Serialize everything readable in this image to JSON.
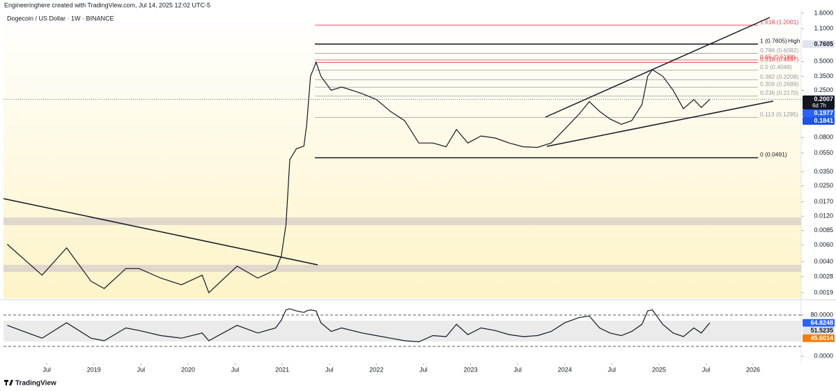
{
  "header": {
    "author_line": "Engineeringhere created with TradingView.com, Jul 14, 2025 12:02 UTC-5"
  },
  "chart_data": [
    {
      "type": "line",
      "title": "Dogecoin / US Dollar · 1W · BINANCE",
      "log_scale": true,
      "grid": false,
      "color": "#131722",
      "x": [
        2018.08,
        2018.45,
        2018.71,
        2018.97,
        2019.11,
        2019.34,
        2019.48,
        2019.71,
        2019.93,
        2020.15,
        2020.22,
        2020.52,
        2020.74,
        2020.93,
        2020.99,
        2021.04,
        2021.08,
        2021.15,
        2021.23,
        2021.26,
        2021.3,
        2021.36,
        2021.41,
        2021.52,
        2021.63,
        2021.74,
        2021.85,
        2022.0,
        2022.15,
        2022.3,
        2022.45,
        2022.6,
        2022.74,
        2022.85,
        2022.97,
        2023.11,
        2023.26,
        2023.41,
        2023.56,
        2023.71,
        2023.855,
        2024.0,
        2024.15,
        2024.26,
        2024.37,
        2024.48,
        2024.6,
        2024.71,
        2024.82,
        2024.88,
        2024.93,
        2025.04,
        2025.15,
        2025.26,
        2025.37,
        2025.45,
        2025.54
      ],
      "values": [
        0.0061,
        0.0029,
        0.0056,
        0.0025,
        0.0021,
        0.0034,
        0.0034,
        0.0027,
        0.0023,
        0.0029,
        0.0019,
        0.0036,
        0.0027,
        0.0033,
        0.0046,
        0.0098,
        0.047,
        0.061,
        0.065,
        0.11,
        0.35,
        0.49,
        0.35,
        0.25,
        0.27,
        0.25,
        0.23,
        0.2,
        0.15,
        0.12,
        0.07,
        0.07,
        0.064,
        0.097,
        0.07,
        0.083,
        0.079,
        0.07,
        0.064,
        0.063,
        0.07,
        0.098,
        0.14,
        0.19,
        0.15,
        0.125,
        0.11,
        0.12,
        0.177,
        0.35,
        0.41,
        0.35,
        0.25,
        0.16,
        0.2,
        0.165,
        0.2007
      ],
      "xlim": [
        2018.04,
        2026.51
      ],
      "ylim": [
        0.00166,
        1.71
      ],
      "yticks": [
        {
          "value": 1.6,
          "label": "1.6000"
        },
        {
          "value": 1.1,
          "label": "1.1000"
        },
        {
          "value": 0.5,
          "label": "0.5000"
        },
        {
          "value": 0.35,
          "label": "0.3500"
        },
        {
          "value": 0.25,
          "label": "0.2500"
        },
        {
          "value": 0.08,
          "label": "0.0800"
        },
        {
          "value": 0.055,
          "label": "0.0550"
        },
        {
          "value": 0.035,
          "label": "0.0350"
        },
        {
          "value": 0.025,
          "label": "0.0250"
        },
        {
          "value": 0.017,
          "label": "0.0170"
        },
        {
          "value": 0.012,
          "label": "0.0120"
        },
        {
          "value": 0.0085,
          "label": "0.0085"
        },
        {
          "value": 0.006,
          "label": "0.0060"
        },
        {
          "value": 0.004,
          "label": "0.0040"
        },
        {
          "value": 0.0028,
          "label": "0.0028"
        },
        {
          "value": 0.0019,
          "label": "0.0019"
        }
      ],
      "fib_levels": [
        {
          "value": 1.2001,
          "label": "1.618 (1.2001)",
          "color": "#f23645"
        },
        {
          "value": 0.7605,
          "label": "1 (0.7605)",
          "color": "#131722"
        },
        {
          "value": 0.6082,
          "label": "0.786 (0.6082)",
          "color": "#9598a1"
        },
        {
          "value": 0.5188,
          "label": "0.65 (0.5188)",
          "color": "#f23645"
        },
        {
          "value": 0.4887,
          "label": "0.618 (0.4887)",
          "color": "#f23645"
        },
        {
          "value": 0.4048,
          "label": "0.5 (0.4048)",
          "color": "#9598a1"
        },
        {
          "value": 0.3208,
          "label": "0.382 (0.3208)",
          "color": "#9598a1"
        },
        {
          "value": 0.2689,
          "label": "0.309 (0.2689)",
          "color": "#9598a1"
        },
        {
          "value": 0.217,
          "label": "0.236 (0.2170)",
          "color": "#9598a1"
        },
        {
          "value": 0.1295,
          "label": "0.113 (0.1295)",
          "color": "#9598a1"
        },
        {
          "value": 0.0491,
          "label": "0 (0.0491)",
          "color": "#131722"
        }
      ],
      "high_label": "High",
      "price_labels": [
        {
          "value": 0.7605,
          "bg": "#e0e3eb",
          "fg": "#131722"
        },
        {
          "value": 0.2007,
          "bg": "#131722",
          "fg": "#ffffff"
        },
        {
          "value": 0.1977,
          "bg": "#2962ff",
          "fg": "#ffffff"
        },
        {
          "value": 0.1841,
          "bg": "#1e53e5",
          "fg": "#ffffff"
        }
      ],
      "countdown": "6d 7h"
    },
    {
      "type": "line",
      "color": "#131722",
      "x": [
        2018.08,
        2018.45,
        2018.71,
        2018.97,
        2019.11,
        2019.34,
        2019.48,
        2019.71,
        2019.93,
        2020.15,
        2020.22,
        2020.52,
        2020.74,
        2020.93,
        2020.99,
        2021.04,
        2021.08,
        2021.15,
        2021.23,
        2021.26,
        2021.3,
        2021.36,
        2021.41,
        2021.52,
        2021.63,
        2021.74,
        2021.85,
        2022.0,
        2022.15,
        2022.3,
        2022.45,
        2022.6,
        2022.74,
        2022.85,
        2022.97,
        2023.11,
        2023.26,
        2023.41,
        2023.56,
        2023.71,
        2023.855,
        2024.0,
        2024.15,
        2024.26,
        2024.37,
        2024.48,
        2024.6,
        2024.71,
        2024.82,
        2024.88,
        2024.93,
        2025.04,
        2025.15,
        2025.26,
        2025.37,
        2025.45,
        2025.54
      ],
      "values": [
        60,
        35,
        65,
        35,
        30,
        55,
        50,
        40,
        35,
        45,
        30,
        60,
        45,
        55,
        70,
        90,
        92,
        88,
        85,
        88,
        90,
        88,
        65,
        48,
        55,
        50,
        45,
        40,
        35,
        30,
        28,
        40,
        38,
        62,
        42,
        55,
        50,
        42,
        38,
        40,
        48,
        65,
        75,
        78,
        55,
        45,
        40,
        48,
        62,
        88,
        90,
        62,
        45,
        38,
        55,
        45,
        64.8248
      ],
      "xlim": [
        2018.04,
        2026.51
      ],
      "xticks": [
        {
          "value": 2018.5,
          "label": "Jul"
        },
        2019,
        {
          "value": 2019.5,
          "label": "Jul"
        },
        2020,
        {
          "value": 2020.5,
          "label": "Jul"
        },
        2021,
        {
          "value": 2021.5,
          "label": "Jul"
        },
        2022,
        {
          "value": 2022.5,
          "label": "Jul"
        },
        2023,
        {
          "value": 2023.5,
          "label": "Jul"
        },
        2024,
        {
          "value": 2024.5,
          "label": "Jul"
        },
        2025,
        {
          "value": 2025.5,
          "label": "Jul"
        },
        2026
      ],
      "ylim": [
        -12,
        107
      ],
      "yticks": [
        {
          "value": 80,
          "label": "80.0000"
        },
        {
          "value": 0,
          "label": "0.0000"
        }
      ],
      "price_labels": [
        {
          "value": 64.8248,
          "bg": "#2962ff",
          "fg": "#ffffff"
        },
        {
          "value": 51.5235,
          "bg": "#e0e3eb",
          "fg": "#131722"
        },
        {
          "value": 45.6014,
          "bg": "#f57c00",
          "fg": "#ffffff"
        }
      ]
    }
  ],
  "footer": {
    "brand": "TradingView"
  }
}
